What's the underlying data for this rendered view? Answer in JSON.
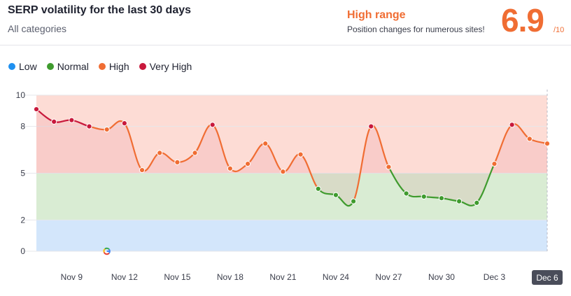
{
  "header": {
    "title": "SERP volatility for the last 30 days",
    "subtitle": "All categories",
    "range_label": "High range",
    "range_desc": "Position changes for numerous sites!",
    "score": "6.9",
    "score_max": "/10"
  },
  "legend": [
    {
      "label": "Low",
      "color": "#1e90f0"
    },
    {
      "label": "Normal",
      "color": "#3f9b2e"
    },
    {
      "label": "High",
      "color": "#f06d33"
    },
    {
      "label": "Very High",
      "color": "#c8193c"
    }
  ],
  "chart_data": {
    "type": "line",
    "ylim": [
      0,
      10
    ],
    "y_ticks": [
      "0",
      "2",
      "5",
      "8",
      "10"
    ],
    "x_tick_labels": [
      "Nov 9",
      "Nov 12",
      "Nov 15",
      "Nov 18",
      "Nov 21",
      "Nov 24",
      "Nov 27",
      "Nov 30",
      "Dec 3",
      "Dec 6"
    ],
    "selected_x_label": "Dec 6",
    "bands": [
      {
        "name": "Low",
        "from": 0,
        "to": 2,
        "color": "#d3e6fb"
      },
      {
        "name": "Normal",
        "from": 2,
        "to": 5,
        "color": "#d9ecd3"
      },
      {
        "name": "High",
        "from": 5,
        "to": 10,
        "color": "#fddcd5"
      }
    ],
    "series": [
      {
        "x": [
          "Nov 7",
          "Nov 8",
          "Nov 9",
          "Nov 10",
          "Nov 11",
          "Nov 12",
          "Nov 13",
          "Nov 14",
          "Nov 15",
          "Nov 16",
          "Nov 17",
          "Nov 18",
          "Nov 19",
          "Nov 20",
          "Nov 21",
          "Nov 22",
          "Nov 23",
          "Nov 24",
          "Nov 25",
          "Nov 26",
          "Nov 27",
          "Nov 28",
          "Nov 29",
          "Nov 30",
          "Dec 1",
          "Dec 2",
          "Dec 3",
          "Dec 4",
          "Dec 5",
          "Dec 6"
        ],
        "values": [
          9.1,
          8.3,
          8.4,
          8.0,
          7.8,
          8.2,
          5.2,
          6.3,
          5.7,
          6.3,
          8.1,
          5.3,
          5.6,
          6.9,
          5.1,
          6.2,
          4.0,
          3.6,
          3.2,
          8.0,
          5.4,
          3.7,
          3.5,
          3.4,
          3.2,
          3.1,
          5.6,
          8.1,
          7.2,
          6.9
        ]
      }
    ],
    "annotations": [
      {
        "x": "Nov 11",
        "icon": "google-icon"
      }
    ]
  }
}
